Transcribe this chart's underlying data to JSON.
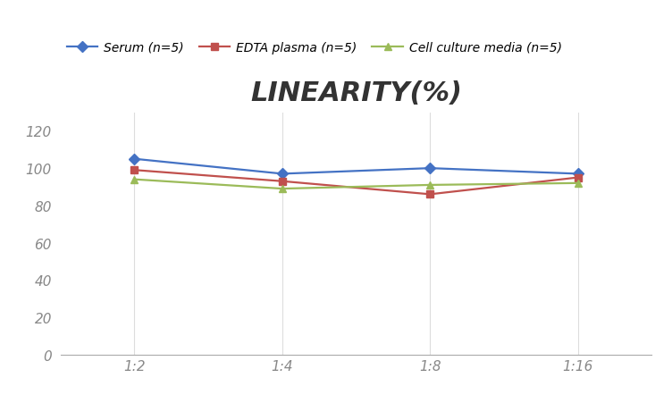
{
  "title": "LINEARITY(%)",
  "title_fontsize": 22,
  "x_labels": [
    "1:2",
    "1:4",
    "1:8",
    "1:16"
  ],
  "x_positions": [
    0,
    1,
    2,
    3
  ],
  "series": [
    {
      "label": "Serum (n=5)",
      "color": "#4472C4",
      "marker": "D",
      "values": [
        105,
        97,
        100,
        97
      ]
    },
    {
      "label": "EDTA plasma (n=5)",
      "color": "#C0504D",
      "marker": "s",
      "values": [
        99,
        93,
        86,
        95
      ]
    },
    {
      "label": "Cell culture media (n=5)",
      "color": "#9BBB59",
      "marker": "^",
      "values": [
        94,
        89,
        91,
        92
      ]
    }
  ],
  "ylim": [
    0,
    130
  ],
  "yticks": [
    0,
    20,
    40,
    60,
    80,
    100,
    120
  ],
  "grid_color": "#DDDDDD",
  "background_color": "#FFFFFF",
  "legend_fontsize": 10,
  "tick_fontsize": 11,
  "axis_color": "#AAAAAA"
}
